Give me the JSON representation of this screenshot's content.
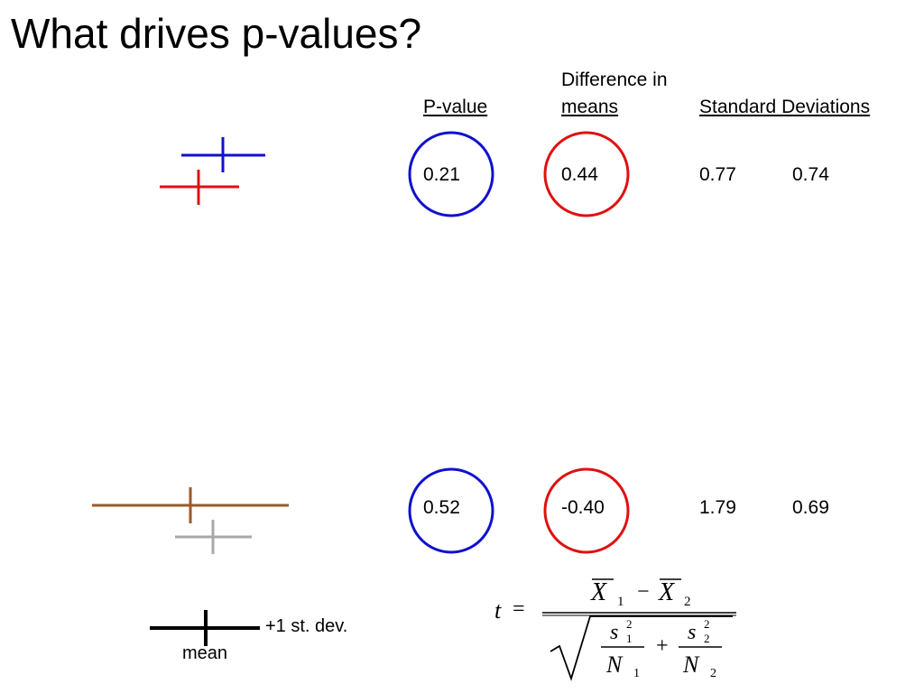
{
  "slide": {
    "title": "What drives p-values?"
  },
  "headers": {
    "p_value": "P-value",
    "diff_line1": "Difference in",
    "diff_line2": "means",
    "std_dev": "Standard Deviations"
  },
  "rows": [
    {
      "p_value": "0.21",
      "diff": "0.44",
      "sd1": "0.77",
      "sd2": "0.74"
    },
    {
      "p_value": "0.52",
      "diff": "-0.40",
      "sd1": "1.79",
      "sd2": "0.69"
    }
  ],
  "legend": {
    "plus_sd": "+1 st. dev.",
    "mean": "mean"
  },
  "formula": {
    "t": "t",
    "eq": "=",
    "x": "X",
    "sub1": "1",
    "sub2": "2",
    "minus": "−",
    "s": "s",
    "sq": "2",
    "n": "N",
    "plus": "+"
  },
  "colors": {
    "blue": "#1010d0",
    "red": "#e01010",
    "brown": "#9a5a2a",
    "gray": "#a8a8a8"
  }
}
